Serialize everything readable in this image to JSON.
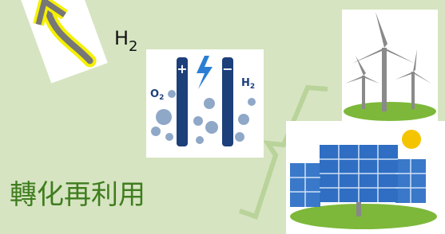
{
  "title": {
    "text": "H",
    "sub": "2"
  },
  "electrolysis": {
    "plus": "+",
    "minus": "−",
    "o2": "O",
    "o2_sub": "2",
    "h2": "H",
    "h2_sub": "2"
  },
  "caption": "轉化再利用"
}
